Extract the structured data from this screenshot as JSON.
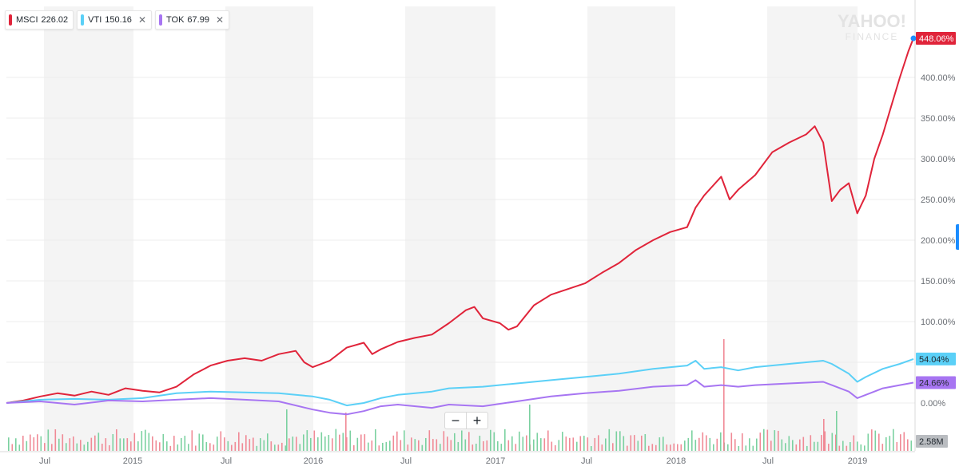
{
  "legend": [
    {
      "symbol": "MSCI",
      "price": "226.02",
      "color": "#e0243a"
    },
    {
      "symbol": "VTI",
      "price": "150.16",
      "color": "#5bd0f7"
    },
    {
      "symbol": "TOK",
      "price": "67.99",
      "color": "#a775f2"
    }
  ],
  "watermark": {
    "top": "YAHOO!",
    "bottom": "FINANCE"
  },
  "zoom": {
    "minus": "−",
    "plus": "+"
  },
  "chart_data": {
    "type": "line",
    "x_tick_labels": [
      "Jul",
      "2015",
      "Jul",
      "2016",
      "Jul",
      "2017",
      "Jul",
      "2018",
      "Jul",
      "2019"
    ],
    "y_tick_labels": [
      "400.00%",
      "350.00%",
      "300.00%",
      "250.00%",
      "200.00%",
      "150.00%",
      "100.00%",
      "0.00%"
    ],
    "ylim": [
      -55,
      465
    ],
    "volume_label": "2.58M",
    "series": [
      {
        "name": "MSCI",
        "color": "#e0243a",
        "end_label": "448.06%",
        "points": [
          [
            2014.0,
            0
          ],
          [
            2014.1,
            3
          ],
          [
            2014.2,
            8
          ],
          [
            2014.3,
            12
          ],
          [
            2014.4,
            9
          ],
          [
            2014.5,
            14
          ],
          [
            2014.6,
            10
          ],
          [
            2014.7,
            18
          ],
          [
            2014.8,
            15
          ],
          [
            2014.9,
            13
          ],
          [
            2015.0,
            20
          ],
          [
            2015.1,
            35
          ],
          [
            2015.2,
            46
          ],
          [
            2015.3,
            52
          ],
          [
            2015.4,
            55
          ],
          [
            2015.5,
            52
          ],
          [
            2015.6,
            60
          ],
          [
            2015.7,
            64
          ],
          [
            2015.75,
            50
          ],
          [
            2015.8,
            44
          ],
          [
            2015.9,
            52
          ],
          [
            2016.0,
            68
          ],
          [
            2016.1,
            74
          ],
          [
            2016.15,
            60
          ],
          [
            2016.2,
            66
          ],
          [
            2016.3,
            75
          ],
          [
            2016.4,
            80
          ],
          [
            2016.5,
            84
          ],
          [
            2016.6,
            98
          ],
          [
            2016.7,
            114
          ],
          [
            2016.75,
            118
          ],
          [
            2016.8,
            104
          ],
          [
            2016.9,
            98
          ],
          [
            2016.95,
            90
          ],
          [
            2017.0,
            94
          ],
          [
            2017.1,
            120
          ],
          [
            2017.2,
            133
          ],
          [
            2017.3,
            140
          ],
          [
            2017.4,
            147
          ],
          [
            2017.5,
            160
          ],
          [
            2017.6,
            172
          ],
          [
            2017.7,
            188
          ],
          [
            2017.8,
            200
          ],
          [
            2017.9,
            210
          ],
          [
            2018.0,
            216
          ],
          [
            2018.05,
            240
          ],
          [
            2018.1,
            255
          ],
          [
            2018.2,
            278
          ],
          [
            2018.25,
            250
          ],
          [
            2018.3,
            262
          ],
          [
            2018.4,
            280
          ],
          [
            2018.5,
            308
          ],
          [
            2018.6,
            320
          ],
          [
            2018.7,
            330
          ],
          [
            2018.75,
            340
          ],
          [
            2018.8,
            320
          ],
          [
            2018.85,
            248
          ],
          [
            2018.9,
            262
          ],
          [
            2018.95,
            270
          ],
          [
            2019.0,
            233
          ],
          [
            2019.05,
            255
          ],
          [
            2019.1,
            300
          ],
          [
            2019.15,
            330
          ],
          [
            2019.2,
            365
          ],
          [
            2019.25,
            400
          ],
          [
            2019.3,
            432
          ],
          [
            2019.33,
            448
          ]
        ]
      },
      {
        "name": "VTI",
        "color": "#5bd0f7",
        "end_label": "54.04%",
        "points": [
          [
            2014.0,
            0
          ],
          [
            2014.2,
            4
          ],
          [
            2014.4,
            5
          ],
          [
            2014.6,
            4
          ],
          [
            2014.8,
            6
          ],
          [
            2015.0,
            12
          ],
          [
            2015.2,
            14
          ],
          [
            2015.4,
            13
          ],
          [
            2015.6,
            12
          ],
          [
            2015.8,
            8
          ],
          [
            2015.9,
            4
          ],
          [
            2016.0,
            -3
          ],
          [
            2016.1,
            0
          ],
          [
            2016.2,
            6
          ],
          [
            2016.3,
            10
          ],
          [
            2016.5,
            14
          ],
          [
            2016.6,
            18
          ],
          [
            2016.8,
            20
          ],
          [
            2017.0,
            24
          ],
          [
            2017.2,
            28
          ],
          [
            2017.4,
            32
          ],
          [
            2017.6,
            36
          ],
          [
            2017.8,
            42
          ],
          [
            2018.0,
            46
          ],
          [
            2018.05,
            52
          ],
          [
            2018.1,
            42
          ],
          [
            2018.2,
            44
          ],
          [
            2018.3,
            40
          ],
          [
            2018.4,
            44
          ],
          [
            2018.6,
            48
          ],
          [
            2018.8,
            52
          ],
          [
            2018.85,
            48
          ],
          [
            2018.95,
            36
          ],
          [
            2019.0,
            26
          ],
          [
            2019.05,
            32
          ],
          [
            2019.15,
            42
          ],
          [
            2019.25,
            48
          ],
          [
            2019.33,
            54
          ]
        ]
      },
      {
        "name": "TOK",
        "color": "#a775f2",
        "end_label": "24.66%",
        "points": [
          [
            2014.0,
            0
          ],
          [
            2014.2,
            2
          ],
          [
            2014.4,
            -2
          ],
          [
            2014.6,
            3
          ],
          [
            2014.8,
            2
          ],
          [
            2015.0,
            4
          ],
          [
            2015.2,
            6
          ],
          [
            2015.4,
            4
          ],
          [
            2015.6,
            2
          ],
          [
            2015.8,
            -8
          ],
          [
            2015.9,
            -12
          ],
          [
            2016.0,
            -14
          ],
          [
            2016.1,
            -10
          ],
          [
            2016.2,
            -4
          ],
          [
            2016.3,
            -2
          ],
          [
            2016.5,
            -6
          ],
          [
            2016.6,
            -2
          ],
          [
            2016.8,
            -4
          ],
          [
            2017.0,
            2
          ],
          [
            2017.2,
            8
          ],
          [
            2017.4,
            12
          ],
          [
            2017.6,
            15
          ],
          [
            2017.8,
            20
          ],
          [
            2018.0,
            22
          ],
          [
            2018.05,
            28
          ],
          [
            2018.1,
            20
          ],
          [
            2018.2,
            22
          ],
          [
            2018.3,
            20
          ],
          [
            2018.4,
            22
          ],
          [
            2018.6,
            24
          ],
          [
            2018.8,
            26
          ],
          [
            2018.85,
            22
          ],
          [
            2018.95,
            14
          ],
          [
            2019.0,
            6
          ],
          [
            2019.05,
            10
          ],
          [
            2019.15,
            18
          ],
          [
            2019.25,
            22
          ],
          [
            2019.33,
            25
          ]
        ]
      }
    ]
  }
}
